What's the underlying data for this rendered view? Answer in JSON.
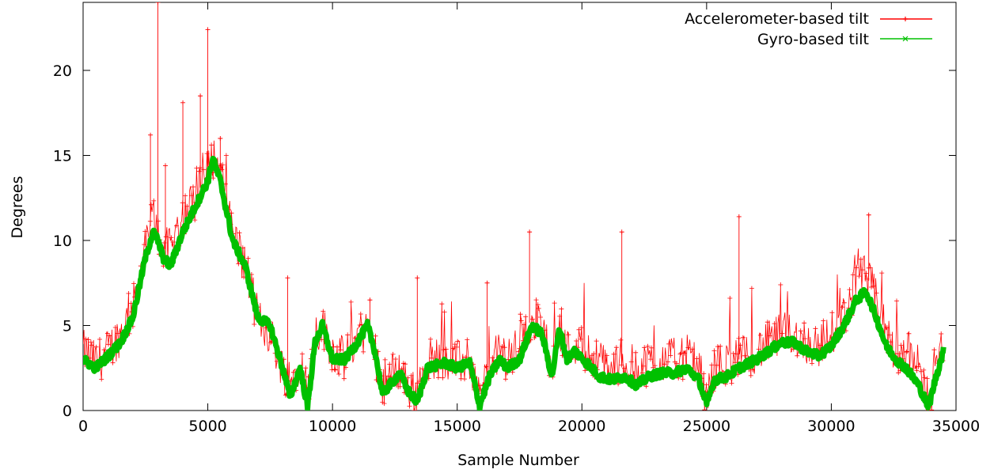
{
  "chart_data": {
    "type": "line",
    "title": "",
    "xlabel": "Sample Number",
    "ylabel": "Degrees",
    "xlim": [
      0,
      35000
    ],
    "ylim": [
      0,
      24
    ],
    "xticks": [
      0,
      5000,
      10000,
      15000,
      20000,
      25000,
      30000,
      35000
    ],
    "yticks": [
      0,
      5,
      10,
      15,
      20
    ],
    "grid": false,
    "legend_position": "top-right",
    "series": [
      {
        "name": "Accelerometer-based tilt",
        "color": "#ff0000",
        "marker": "plus",
        "x": [
          0,
          500,
          1000,
          1500,
          2000,
          2500,
          2800,
          3000,
          3200,
          3500,
          4000,
          4500,
          5000,
          5200,
          5500,
          6000,
          6500,
          7000,
          7500,
          8000,
          8300,
          8700,
          9000,
          9300,
          9600,
          10000,
          10500,
          11000,
          11400,
          11700,
          12000,
          12300,
          12700,
          13000,
          13400,
          13800,
          14500,
          15000,
          15500,
          15900,
          16300,
          16700,
          17000,
          17500,
          18000,
          18400,
          18800,
          19100,
          19400,
          19700,
          20200,
          20700,
          21200,
          21700,
          22200,
          22700,
          23200,
          23700,
          24200,
          24700,
          25000,
          25300,
          25800,
          26300,
          27000,
          27500,
          28000,
          28500,
          29000,
          29500,
          30000,
          30500,
          31000,
          31400,
          31800,
          32200,
          32600,
          33000,
          33500,
          33900,
          34200,
          34500
        ],
        "y": [
          3.5,
          2.8,
          3.5,
          4.5,
          6.0,
          9.5,
          11.5,
          10.5,
          9.5,
          9.5,
          11.5,
          12.5,
          14.0,
          15.0,
          14.0,
          10.5,
          8.5,
          5.5,
          4.5,
          2.5,
          1.5,
          3.0,
          1.0,
          4.5,
          5.0,
          3.5,
          3.0,
          4.5,
          4.8,
          3.5,
          1.5,
          2.0,
          2.5,
          1.5,
          0.8,
          3.0,
          3.2,
          2.8,
          3.0,
          0.8,
          2.5,
          3.5,
          3.0,
          3.8,
          5.5,
          5.0,
          2.5,
          5.0,
          3.5,
          4.0,
          3.5,
          2.8,
          2.5,
          2.8,
          2.5,
          2.8,
          3.0,
          3.0,
          3.2,
          2.5,
          0.5,
          2.5,
          2.8,
          3.0,
          3.5,
          4.0,
          4.5,
          4.5,
          4.0,
          3.8,
          4.5,
          5.5,
          7.5,
          8.0,
          6.5,
          4.5,
          3.5,
          3.5,
          2.5,
          0.5,
          2.5,
          3.8
        ],
        "spikes": [
          [
            2700,
            16.2
          ],
          [
            3000,
            24.0
          ],
          [
            3300,
            14.4
          ],
          [
            4000,
            18.1
          ],
          [
            4700,
            18.5
          ],
          [
            5000,
            22.4
          ],
          [
            5500,
            16.0
          ],
          [
            8200,
            7.8
          ],
          [
            11500,
            6.5
          ],
          [
            13400,
            7.8
          ],
          [
            16200,
            7.5
          ],
          [
            17900,
            10.5
          ],
          [
            21600,
            10.5
          ],
          [
            26300,
            11.4
          ],
          [
            31500,
            11.5
          ]
        ]
      },
      {
        "name": "Gyro-based tilt",
        "color": "#00c000",
        "marker": "cross",
        "x": [
          0,
          500,
          1000,
          1500,
          2000,
          2500,
          2800,
          3000,
          3200,
          3500,
          4000,
          4500,
          5000,
          5200,
          5500,
          6000,
          6500,
          7000,
          7500,
          8000,
          8300,
          8700,
          9000,
          9300,
          9600,
          10000,
          10500,
          11000,
          11400,
          11700,
          12000,
          12300,
          12700,
          13000,
          13400,
          13800,
          14500,
          15000,
          15500,
          15900,
          16300,
          16700,
          17000,
          17500,
          18000,
          18400,
          18800,
          19100,
          19400,
          19700,
          20200,
          20700,
          21200,
          21700,
          22200,
          22700,
          23200,
          23700,
          24200,
          24700,
          25000,
          25300,
          25800,
          26300,
          27000,
          27500,
          28000,
          28500,
          29000,
          29500,
          30000,
          30500,
          31000,
          31400,
          31800,
          32200,
          32600,
          33000,
          33500,
          33900,
          34200,
          34500
        ],
        "y": [
          3.0,
          2.5,
          3.2,
          4.0,
          5.5,
          9.0,
          10.5,
          10.0,
          9.0,
          8.5,
          10.5,
          12.0,
          13.5,
          14.8,
          13.5,
          10.0,
          8.5,
          5.5,
          5.0,
          2.5,
          0.8,
          2.5,
          0.2,
          4.0,
          5.0,
          3.0,
          3.0,
          4.0,
          5.0,
          3.5,
          1.0,
          1.5,
          2.2,
          1.2,
          0.5,
          2.5,
          2.8,
          2.5,
          2.8,
          0.3,
          2.0,
          3.0,
          2.5,
          3.0,
          5.0,
          4.5,
          2.0,
          4.8,
          3.0,
          3.5,
          2.8,
          2.0,
          1.8,
          2.0,
          1.5,
          2.0,
          2.2,
          2.2,
          2.5,
          1.8,
          0.3,
          1.8,
          2.0,
          2.5,
          3.0,
          3.5,
          4.0,
          4.0,
          3.5,
          3.2,
          3.8,
          5.0,
          6.5,
          7.0,
          5.5,
          3.8,
          3.0,
          2.5,
          1.5,
          0.2,
          2.0,
          3.5
        ]
      }
    ]
  }
}
